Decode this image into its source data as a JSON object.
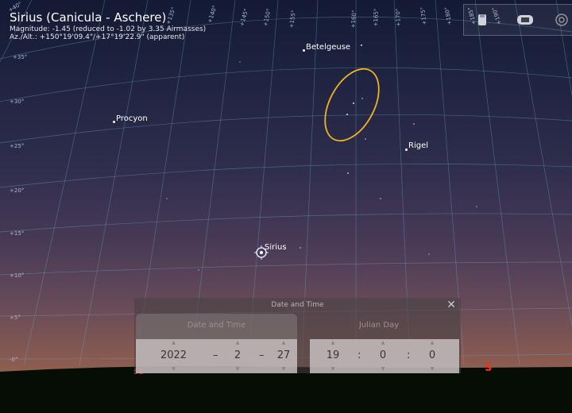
{
  "object": {
    "title": "Sirius (Canicula - Aschere)",
    "magnitude": "Magnitude: -1.45 (reduced to -1.02 by 3.35 Airmasses)",
    "azalt": "Az./Alt.: +150°19'09.4\"/+17°19'22.9\" (apparent)"
  },
  "stars": {
    "betelgeuse": "Betelgeuse",
    "procyon": "Procyon",
    "rigel": "Rigel",
    "sirius": "Sirius"
  },
  "azimuth_ticks": [
    "+135°",
    "+140°",
    "+145°",
    "+150°",
    "+155°",
    "+160°",
    "+165°",
    "+170°",
    "+175°",
    "+180°",
    "+185°",
    "+190°"
  ],
  "altitude_ticks": [
    "+35°",
    "+30°",
    "+25°",
    "+20°",
    "+15°",
    "+10°",
    "+5°",
    "-0°"
  ],
  "corner_tick": "+40°",
  "cardinal": {
    "south": "S",
    "southeast": "SE"
  },
  "toolbar": {
    "icons": [
      "bookmark-icon",
      "screen-icon",
      "settings-icon"
    ]
  },
  "dialog": {
    "title": "Date and Time",
    "tabs": [
      "Date and Time",
      "Julian Day"
    ],
    "date": {
      "year": "2022",
      "month": "2",
      "day": "27",
      "sep": "–"
    },
    "time": {
      "hour": "19",
      "minute": "0",
      "second": "0",
      "sep": ":"
    },
    "spin_up": "▲",
    "spin_down": "▼",
    "close": "✕"
  },
  "colors": {
    "grid": "#6fa8c8",
    "ellipse": "#f0b322",
    "cardinal": "#ff2a1a"
  }
}
